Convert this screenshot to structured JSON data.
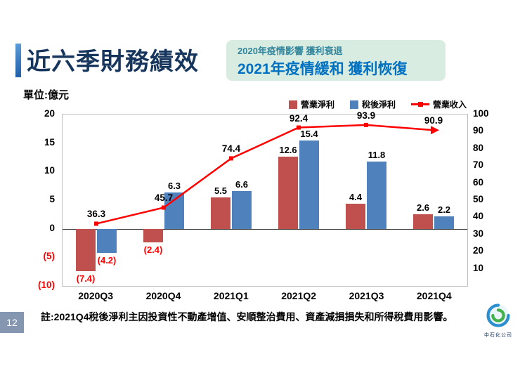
{
  "title": "近六季財務績效",
  "unit_label": "單位:億元",
  "callout": {
    "line1": "2020年疫情影響  獲利衰退",
    "line2": "2021年疫情緩和  獲利恢復"
  },
  "legend": [
    {
      "key": "operating-net-profit",
      "label": "營業淨利",
      "color": "#C0504D",
      "type": "bar"
    },
    {
      "key": "after-tax-net-profit",
      "label": "稅後淨利",
      "color": "#4F81BD",
      "type": "bar"
    },
    {
      "key": "operating-revenue",
      "label": "營業收入",
      "color": "#FF0000",
      "type": "line"
    }
  ],
  "chart_data": {
    "type": "combo",
    "title": "近六季財務績效",
    "categories": [
      "2020Q3",
      "2020Q4",
      "2021Q1",
      "2021Q2",
      "2021Q3",
      "2021Q4"
    ],
    "series": [
      {
        "key": "operating-net-profit",
        "name": "營業淨利",
        "type": "bar",
        "axis": "left",
        "color": "#C0504D",
        "values": [
          -7.4,
          -2.4,
          5.5,
          12.6,
          4.4,
          2.6
        ],
        "labels": [
          "(7.4)",
          "(2.4)",
          "5.5",
          "12.6",
          "4.4",
          "2.6"
        ]
      },
      {
        "key": "after-tax-net-profit",
        "name": "稅後淨利",
        "type": "bar",
        "axis": "left",
        "color": "#4F81BD",
        "values": [
          -4.2,
          6.3,
          6.6,
          15.4,
          11.8,
          2.2
        ],
        "labels": [
          "(4.2)",
          "6.3",
          "6.6",
          "15.4",
          "11.8",
          "2.2"
        ]
      },
      {
        "key": "operating-revenue",
        "name": "營業收入",
        "type": "line",
        "axis": "right",
        "color": "#FF0000",
        "values": [
          36.3,
          45.7,
          74.4,
          92.4,
          93.9,
          90.9
        ],
        "labels": [
          "36.3",
          "45.7",
          "74.4",
          "92.4",
          "93.9",
          "90.9"
        ]
      }
    ],
    "left_axis": {
      "min": -10,
      "max": 20,
      "ticks": [
        20,
        15,
        10,
        5,
        0,
        -5,
        -10
      ],
      "tick_labels": [
        "20",
        "15",
        "10",
        "5",
        "0",
        "(5)",
        "(10)"
      ]
    },
    "right_axis": {
      "min": 0,
      "max": 100,
      "tick_labels": [
        "100",
        "90",
        "80",
        "70",
        "60",
        "50",
        "40",
        "30",
        "20",
        "10"
      ]
    },
    "grid": false,
    "legend_position": "top-right"
  },
  "footnote": "註:2021Q4稅後淨利主因投資性不動產增值、安順整治費用、資產減損損失和所得稅費用影響。",
  "page_number": "12",
  "logo_text": "中石化公司"
}
